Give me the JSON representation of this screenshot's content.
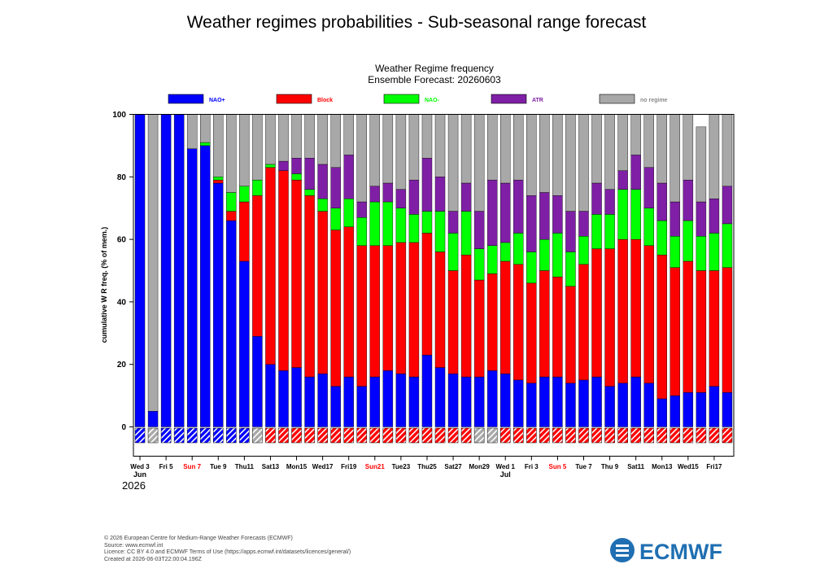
{
  "page_title": "Weather regimes probabilities - Sub-seasonal range forecast",
  "chart_data": {
    "type": "bar",
    "stacked": true,
    "title": "Weather Regime frequency",
    "subtitle": "Ensemble Forecast: 20260603",
    "ylabel": "cumulative W R freq. (% of mem.)",
    "ylim": [
      0,
      100
    ],
    "yticks": [
      0,
      20,
      40,
      60,
      80,
      100
    ],
    "legend_position": "top",
    "colors": {
      "NAO+": "#0000ff",
      "Block": "#ff0000",
      "NAO-": "#00ff00",
      "ATR": "#7f1fa6",
      "no regime": "#a8a8a8"
    },
    "categories": [
      "2026-06-03",
      "2026-06-04",
      "2026-06-05",
      "2026-06-06",
      "2026-06-07",
      "2026-06-08",
      "2026-06-09",
      "2026-06-10",
      "2026-06-11",
      "2026-06-12",
      "2026-06-13",
      "2026-06-14",
      "2026-06-15",
      "2026-06-16",
      "2026-06-17",
      "2026-06-18",
      "2026-06-19",
      "2026-06-20",
      "2026-06-21",
      "2026-06-22",
      "2026-06-23",
      "2026-06-24",
      "2026-06-25",
      "2026-06-26",
      "2026-06-27",
      "2026-06-28",
      "2026-06-29",
      "2026-06-30",
      "2026-07-01",
      "2026-07-02",
      "2026-07-03",
      "2026-07-04",
      "2026-07-05",
      "2026-07-06",
      "2026-07-07",
      "2026-07-08",
      "2026-07-09",
      "2026-07-10",
      "2026-07-11",
      "2026-07-12",
      "2026-07-13",
      "2026-07-14",
      "2026-07-15",
      "2026-07-16",
      "2026-07-17",
      "2026-07-18"
    ],
    "series": [
      {
        "name": "NAO+",
        "values": [
          100,
          5,
          100,
          100,
          89,
          90,
          78,
          66,
          53,
          29,
          20,
          18,
          19,
          16,
          17,
          13,
          16,
          13,
          16,
          18,
          17,
          16,
          23,
          19,
          17,
          16,
          16,
          18,
          17,
          15,
          14,
          16,
          16,
          14,
          15,
          16,
          13,
          14,
          16,
          14,
          9,
          10,
          11,
          11,
          13,
          11
        ]
      },
      {
        "name": "Block",
        "values": [
          0,
          0,
          0,
          0,
          0,
          0,
          1,
          3,
          19,
          45,
          63,
          64,
          60,
          58,
          52,
          50,
          48,
          45,
          42,
          40,
          42,
          43,
          39,
          37,
          33,
          39,
          31,
          31,
          36,
          37,
          32,
          34,
          32,
          31,
          37,
          41,
          44,
          46,
          44,
          44,
          46,
          41,
          42,
          39,
          37,
          40
        ]
      },
      {
        "name": "NAO-",
        "values": [
          0,
          0,
          0,
          0,
          0,
          1,
          1,
          6,
          5,
          5,
          1,
          0,
          2,
          2,
          4,
          7,
          9,
          9,
          14,
          14,
          11,
          9,
          7,
          13,
          12,
          14,
          10,
          9,
          6,
          10,
          10,
          10,
          14,
          11,
          9,
          11,
          11,
          16,
          16,
          12,
          11,
          10,
          13,
          11,
          12,
          14
        ]
      },
      {
        "name": "ATR",
        "values": [
          0,
          0,
          0,
          0,
          0,
          0,
          0,
          0,
          0,
          0,
          0,
          3,
          5,
          10,
          11,
          13,
          14,
          5,
          5,
          6,
          6,
          11,
          17,
          11,
          7,
          9,
          12,
          21,
          19,
          17,
          18,
          15,
          12,
          13,
          8,
          10,
          8,
          6,
          11,
          13,
          12,
          11,
          13,
          11,
          11,
          12
        ]
      },
      {
        "name": "no regime",
        "values": [
          0,
          95,
          0,
          0,
          11,
          9,
          20,
          25,
          23,
          21,
          16,
          15,
          14,
          14,
          16,
          17,
          13,
          28,
          23,
          22,
          24,
          21,
          14,
          20,
          31,
          22,
          31,
          21,
          22,
          21,
          26,
          25,
          26,
          31,
          31,
          22,
          24,
          18,
          13,
          17,
          22,
          28,
          21,
          24,
          27,
          23
        ]
      }
    ],
    "bottom_strip": [
      "NAO+",
      "no regime",
      "NAO+",
      "NAO+",
      "NAO+",
      "NAO+",
      "NAO+",
      "NAO+",
      "NAO+",
      "no regime",
      "Block",
      "Block",
      "Block",
      "Block",
      "Block",
      "Block",
      "Block",
      "Block",
      "Block",
      "Block",
      "Block",
      "Block",
      "Block",
      "Block",
      "Block",
      "Block",
      "no regime",
      "no regime",
      "Block",
      "Block",
      "Block",
      "Block",
      "Block",
      "Block",
      "Block",
      "Block",
      "Block",
      "Block",
      "Block",
      "Block",
      "Block",
      "Block",
      "Block",
      "Block",
      "Block",
      "Block"
    ],
    "xtick_labels": [
      {
        "text": "Wed 3",
        "color": "#000000"
      },
      {
        "text": "Fri 5",
        "color": "#000000"
      },
      {
        "text": "Sun 7",
        "color": "#ff0000"
      },
      {
        "text": "Tue 9",
        "color": "#000000"
      },
      {
        "text": "Thu11",
        "color": "#000000"
      },
      {
        "text": "Sat13",
        "color": "#000000"
      },
      {
        "text": "Mon15",
        "color": "#000000"
      },
      {
        "text": "Wed17",
        "color": "#000000"
      },
      {
        "text": "Fri19",
        "color": "#000000"
      },
      {
        "text": "Sun21",
        "color": "#ff0000"
      },
      {
        "text": "Tue23",
        "color": "#000000"
      },
      {
        "text": "Thu25",
        "color": "#000000"
      },
      {
        "text": "Sat27",
        "color": "#000000"
      },
      {
        "text": "Mon29",
        "color": "#000000"
      },
      {
        "text": "Wed 1",
        "color": "#000000"
      },
      {
        "text": "Fri 3",
        "color": "#000000"
      },
      {
        "text": "Sun 5",
        "color": "#ff0000"
      },
      {
        "text": "Tue 7",
        "color": "#000000"
      },
      {
        "text": "Thu 9",
        "color": "#000000"
      },
      {
        "text": "Sat11",
        "color": "#000000"
      },
      {
        "text": "Mon13",
        "color": "#000000"
      },
      {
        "text": "Wed15",
        "color": "#000000"
      },
      {
        "text": "Fri17",
        "color": "#000000"
      }
    ],
    "month_labels": [
      "Jun",
      "Jul"
    ],
    "year_label": "2026"
  },
  "footer": {
    "copyright": "© 2026 European Centre for Medium-Range Weather Forecasts (ECMWF)",
    "source": "Source: www.ecmwf.int",
    "licence": "Licence: CC BY 4.0 and ECMWF Terms of Use (https://apps.ecmwf.int/datasets/licences/general/)",
    "created": "Created at 2026-06-03T22:00:04.196Z"
  },
  "logo_text": "ECMWF"
}
